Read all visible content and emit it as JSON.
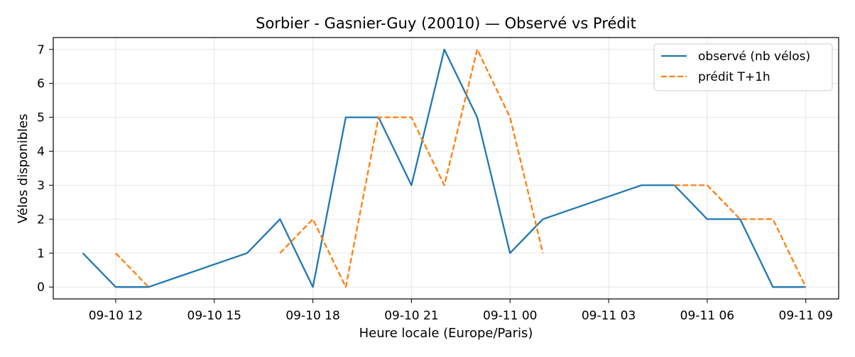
{
  "chart_data": {
    "type": "line",
    "title": "Sorbier - Gasnier-Guy (20010) — Observé vs Prédit",
    "xlabel": "Heure locale (Europe/Paris)",
    "ylabel": "Vélos disponibles",
    "x_ticks": [
      {
        "t": 12,
        "label": "09-10 12"
      },
      {
        "t": 15,
        "label": "09-10 15"
      },
      {
        "t": 18,
        "label": "09-10 18"
      },
      {
        "t": 21,
        "label": "09-10 21"
      },
      {
        "t": 24,
        "label": "09-11 00"
      },
      {
        "t": 27,
        "label": "09-11 03"
      },
      {
        "t": 30,
        "label": "09-11 06"
      },
      {
        "t": 33,
        "label": "09-11 09"
      }
    ],
    "x_unit_note": "",
    "xlim": [
      10.1,
      34.0
    ],
    "ylim": [
      -0.35,
      7.35
    ],
    "y_ticks": [
      0,
      1,
      2,
      3,
      4,
      5,
      6,
      7
    ],
    "grid": true,
    "legend": "top-right",
    "series": [
      {
        "name": "observé (nb vélos)",
        "color": "#1f77b4",
        "dash": "solid",
        "segments": [
          [
            [
              11,
              1
            ],
            [
              12,
              0
            ],
            [
              13,
              0
            ],
            [
              16,
              1
            ],
            [
              17,
              2
            ],
            [
              18,
              0
            ],
            [
              19,
              5
            ],
            [
              20,
              5
            ],
            [
              21,
              3
            ],
            [
              22,
              7
            ],
            [
              23,
              5
            ],
            [
              24,
              1
            ],
            [
              25,
              2
            ],
            [
              28,
              3
            ],
            [
              29,
              3
            ],
            [
              30,
              2
            ],
            [
              31,
              2
            ],
            [
              32,
              0
            ],
            [
              33,
              0
            ]
          ]
        ]
      },
      {
        "name": "prédit T+1h",
        "color": "#ff7f0e",
        "dash": "dashed",
        "segments": [
          [
            [
              12,
              1
            ],
            [
              13,
              0
            ]
          ],
          [
            [
              17,
              1
            ],
            [
              18,
              2
            ],
            [
              19,
              0
            ],
            [
              20,
              5
            ],
            [
              21,
              5
            ],
            [
              22,
              3
            ],
            [
              23,
              7
            ],
            [
              24,
              5
            ],
            [
              25,
              1
            ]
          ],
          [
            [
              29,
              3
            ],
            [
              30,
              3
            ],
            [
              31,
              2
            ],
            [
              32,
              2
            ],
            [
              33,
              0
            ]
          ]
        ]
      }
    ]
  }
}
